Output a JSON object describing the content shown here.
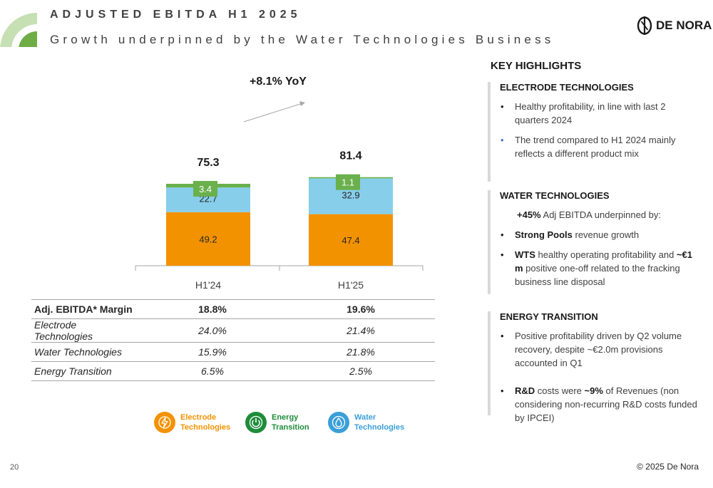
{
  "header": {
    "title": "ADJUSTED EBITDA H1 2025",
    "subtitle": "Growth underpinned by the Water Technologies Business",
    "logo_text": "DE NORA",
    "accent_color": "#70ad47"
  },
  "chart_data": {
    "type": "bar",
    "stacked": true,
    "categories": [
      "H1'24",
      "H1'25"
    ],
    "series": [
      {
        "name": "Electrode Technologies",
        "color": "#f39200",
        "values": [
          49.2,
          47.4
        ]
      },
      {
        "name": "Water Technologies",
        "color": "#87ceeb",
        "values": [
          22.7,
          32.9
        ]
      },
      {
        "name": "Energy Transition",
        "color": "#6ab04c",
        "values": [
          3.4,
          1.1
        ]
      }
    ],
    "totals": [
      75.3,
      81.4
    ],
    "total_labels": [
      "75.3",
      "81.4"
    ],
    "value_labels": [
      [
        "49.2",
        "22.7",
        "3.4"
      ],
      [
        "47.4",
        "32.9",
        "1.1"
      ]
    ],
    "annotation": "+8.1% YoY",
    "ylim": [
      0,
      90
    ],
    "grid": false
  },
  "margins_table": {
    "rows": [
      {
        "label": "Adj. EBITDA* Margin",
        "h1_24": "18.8%",
        "h1_25": "19.6%"
      },
      {
        "label": "Electrode Technologies",
        "h1_24": "24.0%",
        "h1_25": "21.4%"
      },
      {
        "label": "Water Technologies",
        "h1_24": "15.9%",
        "h1_25": "21.8%"
      },
      {
        "label": "Energy Transition",
        "h1_24": "6.5%",
        "h1_25": "2.5%"
      }
    ]
  },
  "legend": {
    "electrode": {
      "line1": "Electrode",
      "line2": "Technologies",
      "color": "#f39200",
      "icon": "lightning-icon"
    },
    "energy": {
      "line1": "Energy",
      "line2": "Transition",
      "color": "#1e8c3a",
      "icon": "power-icon"
    },
    "water": {
      "line1": "Water",
      "line2": "Technologies",
      "color": "#3a9fd8",
      "icon": "water-drop-icon"
    }
  },
  "highlights": {
    "title": "KEY HIGHLIGHTS",
    "electrode": {
      "heading": "ELECTRODE TECHNOLOGIES",
      "b1": "Healthy profitability, in line with last 2 quarters 2024",
      "b2": "The trend compared to H1 2024 mainly reflects a different product mix"
    },
    "water": {
      "heading": "WATER TECHNOLOGIES",
      "intro_bold": "+45%",
      "intro_rest": " Adj EBITDA underpinned by:",
      "b1_bold": "Strong Pools",
      "b1_rest": " revenue growth",
      "b2_bold1": "WTS",
      "b2_mid": " healthy operating profitability and ",
      "b2_bold2": "~€1 m",
      "b2_rest": " positive one-off related to the fracking business line disposal"
    },
    "energy": {
      "heading": "ENERGY TRANSITION",
      "b1": "Positive profitability driven by Q2 volume recovery, despite ~€2.0m provisions accounted in Q1",
      "b2_bold1": "R&D",
      "b2_mid": " costs were ",
      "b2_bold2": "~9%",
      "b2_rest": " of Revenues (non considering non-recurring R&D costs funded by IPCEI)"
    }
  },
  "footer": {
    "page_number": "20",
    "copyright": "© 2025 De Nora"
  }
}
